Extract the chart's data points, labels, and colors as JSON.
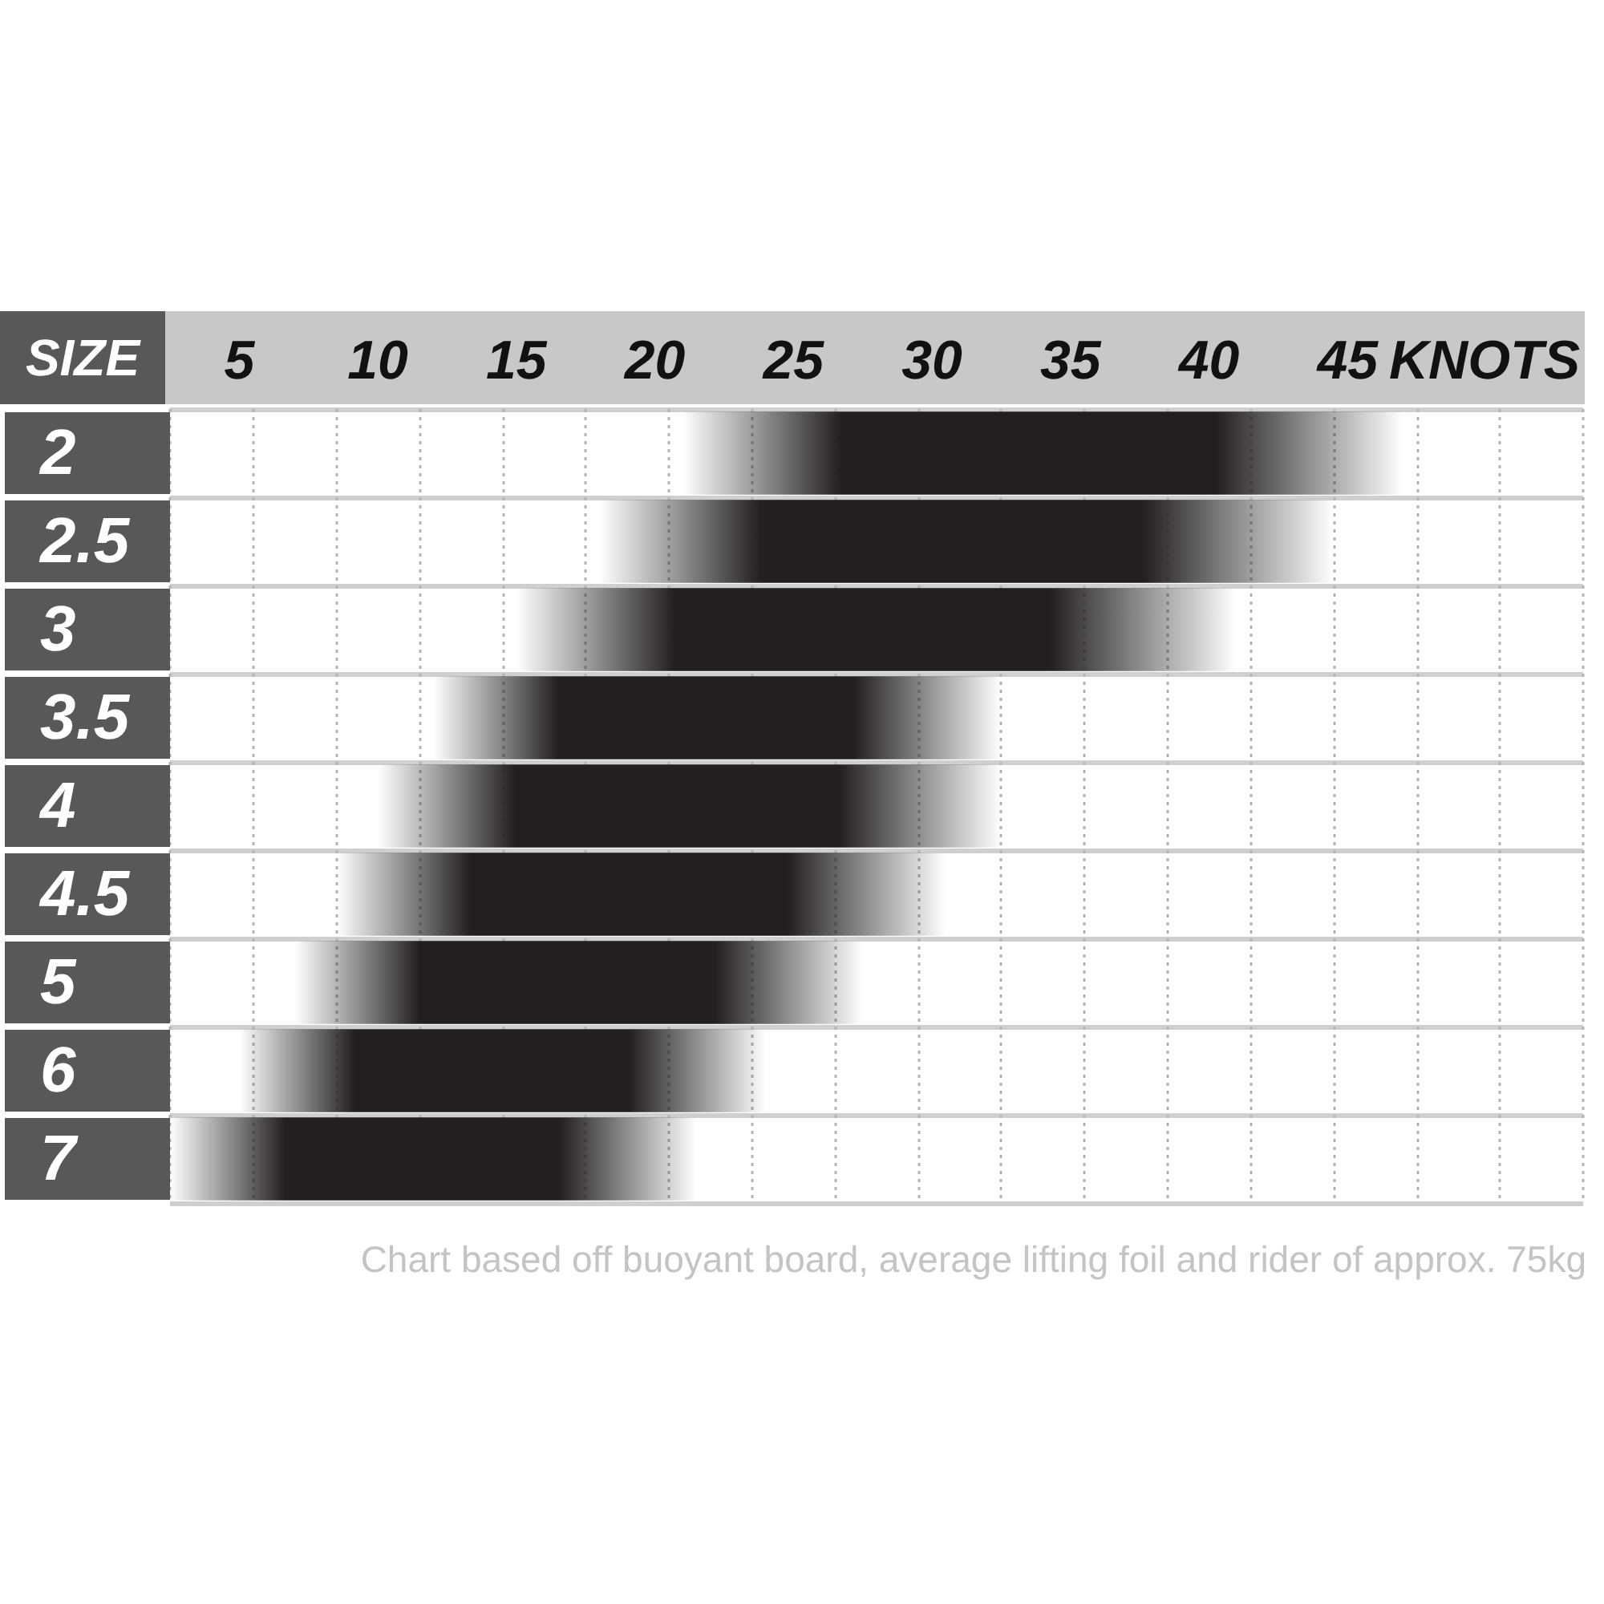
{
  "chart_data": {
    "type": "bar",
    "orientation": "horizontal",
    "xlabel": "KNOTS",
    "ylabel": "SIZE",
    "categories": [
      "2",
      "2.5",
      "3",
      "3.5",
      "4",
      "4.5",
      "5",
      "6",
      "7"
    ],
    "base": [
      21,
      18,
      15,
      12,
      10,
      8.5,
      7,
      5,
      2.5
    ],
    "values": [
      26,
      26.5,
      26,
      20.5,
      22.5,
      22,
      20.5,
      19,
      19
    ],
    "color": "#231f20",
    "xlim": [
      2.5,
      53.5
    ],
    "xticks": [
      {
        "value": 2.5,
        "label": null
      },
      5,
      {
        "value": 5.5,
        "label": null
      },
      {
        "value": 8.5,
        "label": null
      },
      10,
      {
        "value": 11.5,
        "label": null
      },
      {
        "value": 14.5,
        "label": null
      },
      15,
      {
        "value": 17.5,
        "label": null
      },
      20,
      {
        "value": 20.5,
        "label": null
      },
      {
        "value": 23.5,
        "label": null
      },
      25,
      {
        "value": 26.5,
        "label": null
      },
      {
        "value": 29.5,
        "label": null
      },
      30,
      {
        "value": 32.5,
        "label": null
      },
      35,
      {
        "value": 35.5,
        "label": null
      },
      {
        "value": 38.5,
        "label": null
      },
      40,
      {
        "value": 41.5,
        "label": null
      },
      {
        "value": 44.5,
        "label": null
      },
      45,
      {
        "value": 47.5,
        "label": null
      },
      {
        "value": 50.5,
        "label": null
      },
      {
        "value": 53.5,
        "label": null
      }
    ],
    "grid": true,
    "annotations": [
      "Chart based off buoyant board, average lifting foil and rider of approx. 75kg"
    ]
  }
}
